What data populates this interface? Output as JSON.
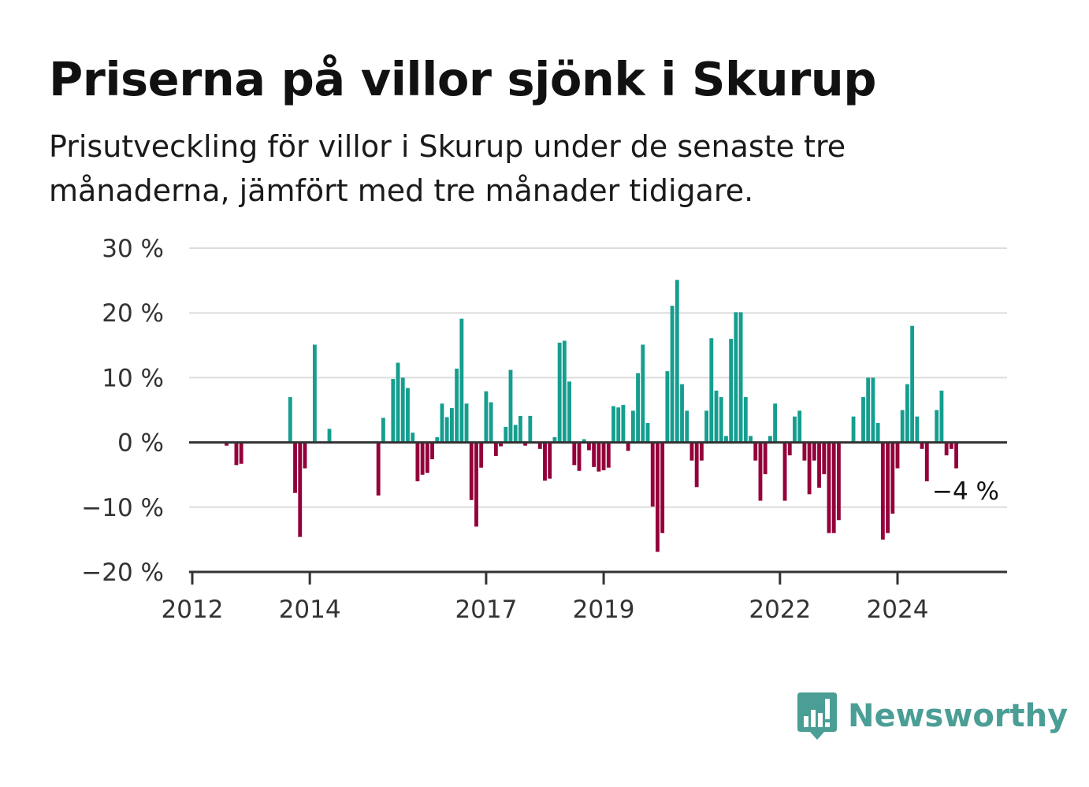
{
  "title": "Priserna på villor sjönk i Skurup",
  "subtitle": "Prisutveckling för villor i Skurup under de senaste tre månaderna, jämfört med tre månader tidigare.",
  "logo": {
    "name": "Newsworthy",
    "icon": "bar-chart-speech-bubble-icon"
  },
  "colors": {
    "positive": "#159e8f",
    "negative": "#93003a",
    "grid": "#dddddd",
    "axis": "#333333",
    "logo": "#4a9e95"
  },
  "chart_data": {
    "type": "bar",
    "y_unit": "%",
    "ylim": [
      -20,
      30
    ],
    "y_ticks": [
      30,
      20,
      10,
      0,
      -10,
      -20
    ],
    "y_tick_labels": [
      "30 %",
      "20 %",
      "10 %",
      "0 %",
      "−10 %",
      "−20 %"
    ],
    "x_ticks": [
      "2012",
      "2014",
      "2017",
      "2019",
      "2022",
      "2024"
    ],
    "annotation": "−4 %",
    "x": [
      "2012-01",
      "2012-02",
      "2012-03",
      "2012-04",
      "2012-05",
      "2012-06",
      "2012-07",
      "2012-08",
      "2012-09",
      "2012-10",
      "2012-11",
      "2012-12",
      "2013-01",
      "2013-02",
      "2013-03",
      "2013-04",
      "2013-05",
      "2013-06",
      "2013-07",
      "2013-08",
      "2013-09",
      "2013-10",
      "2013-11",
      "2013-12",
      "2014-01",
      "2014-02",
      "2014-03",
      "2014-04",
      "2014-05",
      "2014-06",
      "2014-07",
      "2014-08",
      "2014-09",
      "2014-10",
      "2014-11",
      "2014-12",
      "2015-01",
      "2015-02",
      "2015-03",
      "2015-04",
      "2015-05",
      "2015-06",
      "2015-07",
      "2015-08",
      "2015-09",
      "2015-10",
      "2015-11",
      "2015-12",
      "2016-01",
      "2016-02",
      "2016-03",
      "2016-04",
      "2016-05",
      "2016-06",
      "2016-07",
      "2016-08",
      "2016-09",
      "2016-10",
      "2016-11",
      "2016-12",
      "2017-01",
      "2017-02",
      "2017-03",
      "2017-04",
      "2017-05",
      "2017-06",
      "2017-07",
      "2017-08",
      "2017-09",
      "2017-10",
      "2017-11",
      "2017-12",
      "2018-01",
      "2018-02",
      "2018-03",
      "2018-04",
      "2018-05",
      "2018-06",
      "2018-07",
      "2018-08",
      "2018-09",
      "2018-10",
      "2018-11",
      "2018-12",
      "2019-01",
      "2019-02",
      "2019-03",
      "2019-04",
      "2019-05",
      "2019-06",
      "2019-07",
      "2019-08",
      "2019-09",
      "2019-10",
      "2019-11",
      "2019-12",
      "2020-01",
      "2020-02",
      "2020-03",
      "2020-04",
      "2020-05",
      "2020-06",
      "2020-07",
      "2020-08",
      "2020-09",
      "2020-10",
      "2020-11",
      "2020-12",
      "2021-01",
      "2021-02",
      "2021-03",
      "2021-04",
      "2021-05",
      "2021-06",
      "2021-07",
      "2021-08",
      "2021-09",
      "2021-10",
      "2021-11",
      "2021-12",
      "2022-01",
      "2022-02",
      "2022-03",
      "2022-04",
      "2022-05",
      "2022-06",
      "2022-07",
      "2022-08",
      "2022-09",
      "2022-10",
      "2022-11",
      "2022-12",
      "2023-01",
      "2023-02",
      "2023-03",
      "2023-04",
      "2023-05",
      "2023-06",
      "2023-07",
      "2023-08",
      "2023-09",
      "2023-10",
      "2023-11",
      "2023-12",
      "2024-01",
      "2024-02",
      "2024-03",
      "2024-04",
      "2024-05",
      "2024-06",
      "2024-07",
      "2024-08",
      "2024-09",
      "2024-10",
      "2024-11",
      "2024-12",
      "2025-01",
      "2025-02",
      "2025-03"
    ],
    "values": [
      null,
      null,
      null,
      null,
      null,
      null,
      null,
      -0.5,
      null,
      -3.5,
      -3.3,
      null,
      null,
      null,
      null,
      null,
      null,
      null,
      null,
      null,
      7.0,
      -7.8,
      -14.6,
      -4.0,
      null,
      15.1,
      null,
      null,
      2.1,
      null,
      null,
      null,
      null,
      null,
      null,
      null,
      null,
      null,
      -8.2,
      3.8,
      null,
      9.8,
      12.3,
      10.0,
      8.4,
      1.5,
      -6.0,
      -5.0,
      -4.7,
      -2.6,
      0.8,
      6.0,
      3.9,
      5.3,
      11.4,
      19.1,
      6.0,
      -8.9,
      -13.0,
      -3.9,
      7.9,
      6.2,
      -2.1,
      -0.6,
      2.4,
      11.2,
      2.7,
      4.1,
      -0.5,
      4.1,
      null,
      -1.0,
      -5.9,
      -5.6,
      0.8,
      15.4,
      15.7,
      9.4,
      -3.5,
      -4.4,
      0.5,
      -1.2,
      -3.8,
      -4.5,
      -4.3,
      -3.9,
      5.6,
      5.4,
      5.8,
      -1.3,
      4.9,
      10.7,
      15.1,
      3.0,
      -9.9,
      -16.9,
      -14.0,
      11.0,
      21.1,
      25.1,
      9.0,
      4.9,
      -2.8,
      -6.9,
      -2.8,
      4.9,
      16.1,
      8.0,
      7.0,
      1.0,
      16.0,
      20.1,
      20.1,
      7.0,
      1.0,
      -2.8,
      -9.0,
      -4.9,
      1.0,
      6.0,
      null,
      -9.0,
      -2.0,
      4.0,
      4.9,
      -2.8,
      -8.0,
      -2.8,
      -7.0,
      -4.9,
      -14.0,
      -14.0,
      -12.0,
      null,
      null,
      4.0,
      null,
      7.0,
      10.0,
      10.0,
      3.0,
      -15.0,
      -14.0,
      -11.0,
      -4.0,
      5.0,
      9.0,
      18.0,
      4.0,
      -1.0,
      -6.0,
      null,
      5.0,
      8.0,
      -2.0,
      -1.0,
      -4.0,
      null,
      null
    ]
  }
}
